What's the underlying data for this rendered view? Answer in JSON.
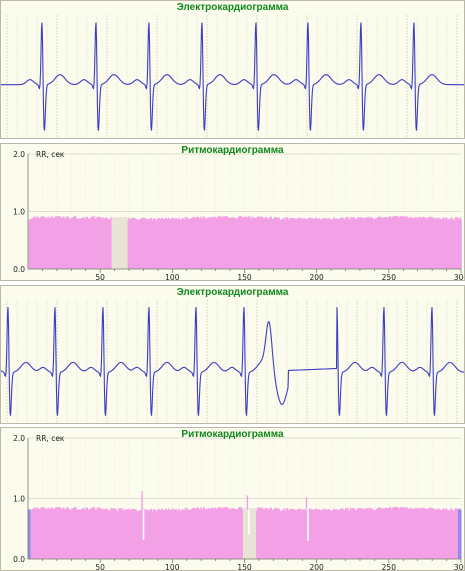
{
  "chart_data": [
    {
      "type": "line",
      "title": "Электрокардиограмма",
      "r_peaks": [
        41,
        95,
        148,
        201,
        255,
        307,
        360,
        413
      ],
      "baseline_norm": 0.53,
      "line_color": "#3d3dc4"
    },
    {
      "type": "bar",
      "title": "Ритмокардиограмма",
      "ylabel": "RR, сек",
      "yticks": [
        "0.0",
        "1.0",
        "2.0"
      ],
      "xticks": [
        "50",
        "100",
        "150",
        "200",
        "250",
        "300"
      ],
      "xlim": [
        0,
        300
      ],
      "ylim": [
        0,
        2.0
      ],
      "typical_rr": 0.88,
      "gap": [
        58,
        69
      ],
      "bar_color": "#f3a1e6",
      "gap_color": "#e7e4d6"
    },
    {
      "type": "line",
      "title": "Электрокардиограмма",
      "r_peaks": [
        7,
        54,
        102,
        148,
        195,
        243,
        336,
        383,
        431
      ],
      "ectopic_at": 271,
      "baseline_norm": 0.55,
      "line_color": "#3d3dc4"
    },
    {
      "type": "bar",
      "title": "Ритмокардиограмма",
      "ylabel": "RR, сек",
      "yticks": [
        "0.0",
        "1.0",
        "2.0"
      ],
      "xticks": [
        "50",
        "100",
        "150",
        "200",
        "250",
        "300"
      ],
      "xlim": [
        0,
        300
      ],
      "ylim": [
        0,
        2.0
      ],
      "typical_rr": 0.82,
      "gap": [
        149,
        158
      ],
      "spikes": [
        {
          "x": 79,
          "up": 1.12,
          "down": 0.32
        },
        {
          "x": 152,
          "up": 1.05,
          "down": 0.4
        },
        {
          "x": 193,
          "up": 1.02,
          "down": 0.3
        }
      ],
      "bar_color": "#f3a1e6",
      "gap_color": "#e7e4d6",
      "edge_color": "#8a8ee8"
    }
  ]
}
